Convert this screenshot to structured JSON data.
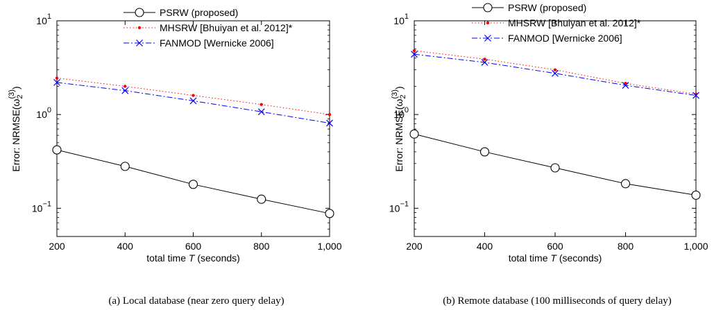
{
  "chart_data": [
    {
      "type": "line",
      "panel_label": "(a)",
      "caption": "Local database (near zero query delay)",
      "xlabel_prefix": "total time ",
      "xlabel_var": "T",
      "xlabel_suffix": " (seconds)",
      "ylabel_prefix": "Error: NRMSE(ω",
      "ylabel_sub": "2",
      "ylabel_sup": "(3)",
      "ylabel_suffix": ")",
      "yscale": "log",
      "xlim": [
        200,
        1000
      ],
      "ylim": [
        0.05,
        10
      ],
      "x_ticks": [
        {
          "value": 200,
          "label": "200"
        },
        {
          "value": 400,
          "label": "400"
        },
        {
          "value": 600,
          "label": "600"
        },
        {
          "value": 800,
          "label": "800"
        },
        {
          "value": 1000,
          "label": "1,000"
        }
      ],
      "y_ticks": [
        {
          "value": 0.1,
          "base": "10",
          "exp": "−1"
        },
        {
          "value": 1,
          "base": "10",
          "exp": "0"
        },
        {
          "value": 10,
          "base": "10",
          "exp": "1"
        }
      ],
      "x": [
        200,
        400,
        600,
        800,
        1000
      ],
      "legend_position": "top-center",
      "series": [
        {
          "name": "PSRW (proposed)",
          "color": "#000000",
          "style": "solid",
          "marker": "circle",
          "values": [
            0.42,
            0.28,
            0.18,
            0.125,
            0.088
          ]
        },
        {
          "name": "MHSRW [Bhuiyan et al. 2012]*",
          "color": "#ff0000",
          "style": "dotted",
          "marker": "dot",
          "values": [
            2.45,
            2.0,
            1.6,
            1.28,
            1.0
          ]
        },
        {
          "name": "FANMOD [Wernicke 2006]",
          "color": "#0000ff",
          "style": "dashdot",
          "marker": "x",
          "values": [
            2.2,
            1.8,
            1.4,
            1.07,
            0.81
          ]
        }
      ]
    },
    {
      "type": "line",
      "panel_label": "(b)",
      "caption": "Remote database (100 milliseconds of query delay)",
      "xlabel_prefix": "total time ",
      "xlabel_var": "T",
      "xlabel_suffix": " (seconds)",
      "ylabel_prefix": "Error: NRMSE(ω",
      "ylabel_sub": "2",
      "ylabel_sup": "(3)",
      "ylabel_suffix": ")",
      "yscale": "log",
      "xlim": [
        200,
        1000
      ],
      "ylim": [
        0.05,
        10
      ],
      "x_ticks": [
        {
          "value": 200,
          "label": "200"
        },
        {
          "value": 400,
          "label": "400"
        },
        {
          "value": 600,
          "label": "600"
        },
        {
          "value": 800,
          "label": "800"
        },
        {
          "value": 1000,
          "label": "1,000"
        }
      ],
      "y_ticks": [
        {
          "value": 0.1,
          "base": "10",
          "exp": "−1"
        },
        {
          "value": 1,
          "base": "10",
          "exp": "0"
        },
        {
          "value": 10,
          "base": "10",
          "exp": "1"
        }
      ],
      "x": [
        200,
        400,
        600,
        800,
        1000
      ],
      "legend_position": "top-center",
      "series": [
        {
          "name": "PSRW (proposed)",
          "color": "#000000",
          "style": "solid",
          "marker": "circle",
          "values": [
            0.62,
            0.4,
            0.27,
            0.183,
            0.138
          ]
        },
        {
          "name": "MHSRW [Bhuiyan et al. 2012]*",
          "color": "#ff0000",
          "style": "dotted",
          "marker": "dot",
          "values": [
            4.8,
            3.9,
            3.0,
            2.15,
            1.65
          ]
        },
        {
          "name": "FANMOD [Wernicke 2006]",
          "color": "#0000ff",
          "style": "dashdot",
          "marker": "x",
          "values": [
            4.4,
            3.6,
            2.75,
            2.05,
            1.6
          ]
        }
      ]
    }
  ]
}
